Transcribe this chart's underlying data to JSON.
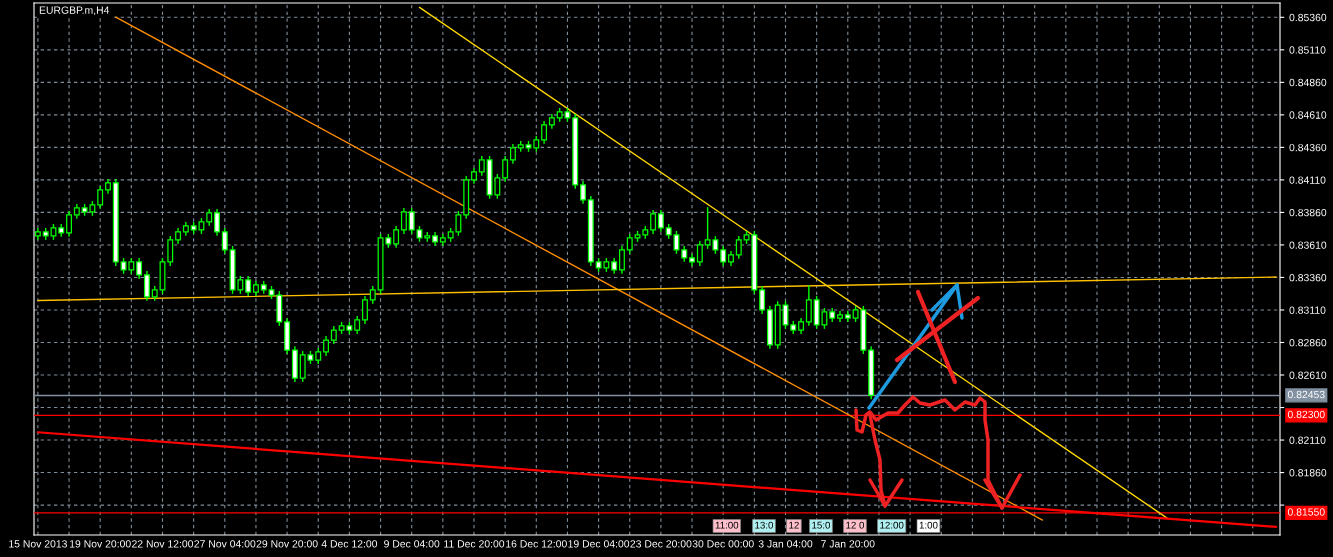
{
  "chart_data": {
    "type": "candlestick",
    "title": "EURGBP.m,H4",
    "ylim": [
      0.8138,
      0.8547
    ],
    "categories": [
      "15 Nov 2013",
      null,
      null,
      null,
      null,
      null,
      null,
      null,
      "19 Nov 20:00",
      null,
      null,
      null,
      null,
      null,
      null,
      null,
      "22 Nov 12:00",
      null,
      null,
      null,
      null,
      null,
      null,
      null,
      "27 Nov 04:00",
      null,
      null,
      null,
      null,
      null,
      null,
      null,
      "29 Nov 20:00",
      null,
      null,
      null,
      null,
      null,
      null,
      null,
      "4 Dec 12:00",
      null,
      null,
      null,
      null,
      null,
      null,
      null,
      "9 Dec 04:00",
      null,
      null,
      null,
      null,
      null,
      null,
      null,
      "11 Dec 20:00",
      null,
      null,
      null,
      null,
      null,
      null,
      null,
      "16 Dec 12:00",
      null,
      null,
      null,
      null,
      null,
      null,
      null,
      "19 Dec 04:00",
      null,
      null,
      null,
      null,
      null,
      null,
      null,
      "23 Dec 20:00",
      null,
      null,
      null,
      null,
      null,
      null,
      null,
      "30 Dec 00:00",
      null,
      null,
      null,
      null,
      null,
      null,
      null,
      "3 Jan 04:00",
      null,
      null,
      null,
      null,
      null,
      null,
      null,
      "7 Jan 20:00",
      null,
      null,
      null,
      null,
      null,
      null,
      null,
      null,
      null,
      null,
      null,
      null,
      null,
      null,
      null,
      null,
      null,
      null,
      null,
      null,
      null,
      null,
      null,
      null,
      null,
      null,
      null,
      null,
      null,
      null,
      null,
      null,
      null,
      null,
      null,
      null,
      null,
      null,
      null,
      null,
      null,
      null,
      null,
      null,
      null,
      null,
      null,
      null,
      null,
      null,
      null,
      null,
      null,
      null,
      null
    ],
    "yticks": [
      {
        "value": 0.8536,
        "label": "0.85360"
      },
      {
        "value": 0.8511,
        "label": "0.85110"
      },
      {
        "value": 0.8486,
        "label": "0.84860"
      },
      {
        "value": 0.8461,
        "label": "0.84610"
      },
      {
        "value": 0.8436,
        "label": "0.84360"
      },
      {
        "value": 0.8411,
        "label": "0.84110"
      },
      {
        "value": 0.8386,
        "label": "0.83860"
      },
      {
        "value": 0.8361,
        "label": "0.83610"
      },
      {
        "value": 0.8336,
        "label": "0.83360"
      },
      {
        "value": 0.8311,
        "label": "0.83110"
      },
      {
        "value": 0.8286,
        "label": "0.82860"
      },
      {
        "value": 0.8261,
        "label": "0.82610"
      },
      {
        "value": 0.8236,
        "label": null
      },
      {
        "value": 0.8211,
        "label": "0.82110"
      },
      {
        "value": 0.8186,
        "label": "0.81860"
      },
      {
        "value": 0.8161,
        "label": null
      }
    ],
    "grid": true,
    "legend": false,
    "ref_lines": [
      {
        "axis": "y",
        "value": 0.82453,
        "label": "0.82453",
        "color": "#8090a0"
      },
      {
        "axis": "y",
        "value": 0.823,
        "label": "0.82300",
        "color": "#ff0000"
      },
      {
        "axis": "y",
        "value": 0.8155,
        "label": "0.81550",
        "color": "#ff0000"
      }
    ],
    "annotations": [
      "11:00",
      "13:0",
      "12",
      "15:0",
      "12 0",
      "12:00",
      "1:00"
    ],
    "series": [
      {
        "type": "line",
        "color": "#ff8c00",
        "values": [
          null,
          null,
          null,
          null,
          null,
          null,
          null,
          null,
          null,
          null,
          0.85362,
          null,
          null,
          null,
          null,
          null,
          null,
          null,
          null,
          null,
          null,
          null,
          null,
          null,
          null,
          null,
          null,
          null,
          null,
          null,
          null,
          null,
          null,
          null,
          null,
          null,
          null,
          null,
          null,
          null,
          null,
          null,
          null,
          null,
          null,
          null,
          null,
          null,
          null,
          null,
          null,
          null,
          null,
          null,
          null,
          null,
          null,
          null,
          null,
          null,
          null,
          null,
          null,
          null,
          null,
          null,
          null,
          null,
          null,
          null,
          null,
          null,
          null,
          null,
          null,
          null,
          null,
          null,
          null,
          null,
          null,
          null,
          null,
          null,
          null,
          null,
          null,
          null,
          null,
          null,
          null,
          null,
          null,
          null,
          null,
          null,
          null,
          null,
          null,
          null,
          null,
          null,
          null,
          null,
          null,
          null,
          null,
          null,
          null,
          null,
          null,
          null,
          null,
          null,
          null,
          null,
          null,
          null,
          null,
          null,
          null,
          null,
          null,
          null,
          null,
          null,
          null,
          null,
          null,
          0.81495,
          null,
          null,
          null,
          null,
          null,
          null,
          null,
          null,
          null,
          null,
          null,
          null,
          null,
          null,
          null,
          null,
          null,
          null,
          null,
          null,
          null,
          null,
          null,
          null,
          null,
          null,
          null,
          null,
          null,
          null
        ]
      },
      {
        "type": "line",
        "color": "#ffd700",
        "values": [
          null,
          null,
          null,
          null,
          null,
          null,
          null,
          null,
          null,
          null,
          null,
          null,
          null,
          null,
          null,
          null,
          null,
          null,
          null,
          null,
          null,
          null,
          null,
          null,
          null,
          null,
          null,
          null,
          null,
          null,
          null,
          null,
          null,
          null,
          null,
          null,
          null,
          null,
          null,
          null,
          null,
          null,
          null,
          null,
          null,
          null,
          null,
          null,
          null,
          0.85436,
          null,
          null,
          null,
          null,
          null,
          null,
          null,
          null,
          null,
          null,
          null,
          null,
          null,
          null,
          null,
          null,
          null,
          null,
          null,
          null,
          null,
          null,
          null,
          null,
          null,
          null,
          null,
          null,
          null,
          null,
          null,
          null,
          null,
          null,
          null,
          null,
          null,
          null,
          null,
          null,
          null,
          null,
          null,
          null,
          null,
          null,
          null,
          null,
          null,
          null,
          null,
          null,
          null,
          null,
          null,
          null,
          null,
          null,
          null,
          null,
          null,
          null,
          null,
          null,
          null,
          null,
          null,
          null,
          null,
          null,
          null,
          null,
          null,
          null,
          null,
          null,
          null,
          null,
          null,
          null,
          null,
          null,
          null,
          null,
          null,
          null,
          null,
          null,
          null,
          null,
          null,
          null,
          null,
          null,
          null,
          0.8151,
          null,
          null,
          null,
          null,
          null,
          null,
          null,
          null,
          null,
          null,
          null,
          null,
          null,
          null
        ]
      },
      {
        "type": "line",
        "color": "#ffc000",
        "values": [
          0.83183,
          null,
          null,
          null,
          null,
          null,
          null,
          null,
          null,
          null,
          null,
          null,
          null,
          null,
          null,
          null,
          null,
          null,
          null,
          null,
          null,
          null,
          null,
          null,
          null,
          null,
          null,
          null,
          null,
          null,
          null,
          null,
          null,
          null,
          null,
          null,
          null,
          null,
          null,
          null,
          null,
          null,
          null,
          null,
          null,
          null,
          null,
          null,
          null,
          null,
          null,
          null,
          null,
          null,
          null,
          null,
          null,
          null,
          null,
          null,
          null,
          null,
          null,
          null,
          null,
          null,
          null,
          null,
          null,
          null,
          null,
          null,
          null,
          null,
          null,
          null,
          null,
          null,
          null,
          null,
          null,
          null,
          null,
          null,
          null,
          null,
          null,
          null,
          null,
          null,
          null,
          null,
          null,
          null,
          null,
          null,
          null,
          null,
          null,
          null,
          null,
          null,
          null,
          null,
          null,
          null,
          null,
          null,
          null,
          null,
          null,
          null,
          null,
          null,
          null,
          null,
          null,
          null,
          null,
          null,
          null,
          null,
          null,
          null,
          null,
          null,
          null,
          null,
          null,
          null,
          null,
          null,
          null,
          null,
          null,
          null,
          null,
          null,
          null,
          null,
          null,
          null,
          null,
          null,
          null,
          null,
          null,
          null,
          null,
          null,
          null,
          null,
          null,
          null,
          null,
          null,
          null,
          null,
          null,
          0.83363
        ]
      },
      {
        "type": "line",
        "color": "#ff0000",
        "values": [
          0.8217,
          null,
          null,
          null,
          null,
          null,
          null,
          null,
          null,
          null,
          null,
          null,
          null,
          null,
          null,
          null,
          null,
          null,
          null,
          null,
          null,
          null,
          null,
          null,
          null,
          null,
          null,
          null,
          null,
          null,
          null,
          null,
          null,
          null,
          null,
          null,
          null,
          null,
          null,
          null,
          null,
          null,
          null,
          null,
          null,
          null,
          null,
          null,
          null,
          null,
          null,
          null,
          null,
          null,
          null,
          null,
          null,
          null,
          null,
          null,
          null,
          null,
          null,
          null,
          null,
          null,
          null,
          null,
          null,
          null,
          null,
          null,
          null,
          null,
          null,
          null,
          null,
          null,
          null,
          null,
          null,
          null,
          null,
          null,
          null,
          null,
          null,
          null,
          null,
          null,
          null,
          null,
          null,
          null,
          null,
          null,
          null,
          null,
          null,
          null,
          null,
          null,
          null,
          null,
          null,
          null,
          null,
          null,
          null,
          null,
          null,
          null,
          null,
          null,
          null,
          null,
          null,
          null,
          null,
          null,
          null,
          null,
          null,
          null,
          null,
          null,
          null,
          null,
          null,
          null,
          null,
          null,
          null,
          null,
          null,
          null,
          null,
          null,
          null,
          null,
          null,
          null,
          null,
          null,
          null,
          null,
          null,
          null,
          null,
          null,
          null,
          null,
          null,
          null,
          null,
          null,
          null,
          null,
          null,
          0.81442
        ]
      }
    ],
    "color": "#00ff00",
    "ohlc": [
      [
        0.8368,
        0.8374,
        0.8365,
        0.8371
      ],
      [
        0.8371,
        0.8374,
        0.83649,
        0.83679
      ],
      [
        0.83679,
        0.83771,
        0.83649,
        0.83741
      ],
      [
        0.83741,
        0.83771,
        0.83672,
        0.83702
      ],
      [
        0.83702,
        0.83871,
        0.83672,
        0.83841
      ],
      [
        0.83841,
        0.83925,
        0.83811,
        0.83895
      ],
      [
        0.83895,
        0.83925,
        0.83834,
        0.83864
      ],
      [
        0.83864,
        0.83948,
        0.83834,
        0.83918
      ],
      [
        0.83918,
        0.84063,
        0.83888,
        0.84033
      ],
      [
        0.84033,
        0.84117,
        0.84003,
        0.84087
      ],
      [
        0.84087,
        0.84117,
        0.83449,
        0.83479
      ],
      [
        0.83479,
        0.83509,
        0.83388,
        0.83418
      ],
      [
        0.83418,
        0.83509,
        0.83388,
        0.83479
      ],
      [
        0.83479,
        0.83509,
        0.83349,
        0.83379
      ],
      [
        0.83379,
        0.83409,
        0.8318,
        0.8321
      ],
      [
        0.8321,
        0.83294,
        0.8318,
        0.83264
      ],
      [
        0.83264,
        0.83509,
        0.83234,
        0.83479
      ],
      [
        0.83479,
        0.83678,
        0.83449,
        0.83648
      ],
      [
        0.83648,
        0.8374,
        0.83618,
        0.8371
      ],
      [
        0.8371,
        0.83786,
        0.8368,
        0.83756
      ],
      [
        0.83756,
        0.83786,
        0.83695,
        0.83725
      ],
      [
        0.83725,
        0.83817,
        0.83695,
        0.83787
      ],
      [
        0.83787,
        0.83886,
        0.83757,
        0.83856
      ],
      [
        0.83856,
        0.83886,
        0.8368,
        0.8371
      ],
      [
        0.8371,
        0.8374,
        0.83542,
        0.83572
      ],
      [
        0.83572,
        0.83602,
        0.83234,
        0.83264
      ],
      [
        0.83264,
        0.83371,
        0.83234,
        0.83341
      ],
      [
        0.83341,
        0.83371,
        0.83218,
        0.83248
      ],
      [
        0.83248,
        0.83332,
        0.83218,
        0.83302
      ],
      [
        0.83302,
        0.83332,
        0.83234,
        0.83264
      ],
      [
        0.83264,
        0.83294,
        0.83195,
        0.83225
      ],
      [
        0.83225,
        0.83255,
        0.82988,
        0.83018
      ],
      [
        0.83018,
        0.83048,
        0.82772,
        0.82802
      ],
      [
        0.82802,
        0.82832,
        0.82557,
        0.82587
      ],
      [
        0.82587,
        0.82794,
        0.82557,
        0.82764
      ],
      [
        0.82764,
        0.82794,
        0.82695,
        0.82725
      ],
      [
        0.82725,
        0.82817,
        0.82695,
        0.82787
      ],
      [
        0.82787,
        0.82909,
        0.82757,
        0.82879
      ],
      [
        0.82879,
        0.82986,
        0.82849,
        0.82956
      ],
      [
        0.82956,
        0.83017,
        0.82926,
        0.82987
      ],
      [
        0.82987,
        0.83017,
        0.82926,
        0.82956
      ],
      [
        0.82956,
        0.83063,
        0.82926,
        0.83033
      ],
      [
        0.83033,
        0.83217,
        0.83003,
        0.83187
      ],
      [
        0.83187,
        0.83294,
        0.83157,
        0.83264
      ],
      [
        0.83264,
        0.83694,
        0.83234,
        0.83664
      ],
      [
        0.83664,
        0.83694,
        0.83588,
        0.83618
      ],
      [
        0.83618,
        0.83755,
        0.83588,
        0.83725
      ],
      [
        0.83725,
        0.83894,
        0.83695,
        0.83864
      ],
      [
        0.83864,
        0.83894,
        0.83695,
        0.83725
      ],
      [
        0.83725,
        0.83755,
        0.83634,
        0.83664
      ],
      [
        0.83664,
        0.83709,
        0.83634,
        0.83679
      ],
      [
        0.83679,
        0.83709,
        0.83603,
        0.83633
      ],
      [
        0.83633,
        0.83694,
        0.83603,
        0.83664
      ],
      [
        0.83664,
        0.8374,
        0.83634,
        0.8371
      ],
      [
        0.8371,
        0.83871,
        0.8368,
        0.83841
      ],
      [
        0.83841,
        0.8414,
        0.83811,
        0.8411
      ],
      [
        0.8411,
        0.84201,
        0.8408,
        0.84171
      ],
      [
        0.84171,
        0.84294,
        0.84141,
        0.84264
      ],
      [
        0.84264,
        0.84294,
        0.83965,
        0.83995
      ],
      [
        0.83995,
        0.84155,
        0.83965,
        0.84125
      ],
      [
        0.84125,
        0.84294,
        0.84095,
        0.84264
      ],
      [
        0.84264,
        0.84386,
        0.84234,
        0.84356
      ],
      [
        0.84356,
        0.84409,
        0.84326,
        0.84379
      ],
      [
        0.84379,
        0.84409,
        0.84326,
        0.84356
      ],
      [
        0.84356,
        0.84448,
        0.84326,
        0.84418
      ],
      [
        0.84418,
        0.84563,
        0.84388,
        0.84533
      ],
      [
        0.84533,
        0.84617,
        0.84503,
        0.84587
      ],
      [
        0.84587,
        0.84663,
        0.84557,
        0.84633
      ],
      [
        0.84633,
        0.84663,
        0.84557,
        0.84587
      ],
      [
        0.84587,
        0.84617,
        0.84041,
        0.84071
      ],
      [
        0.84071,
        0.84101,
        0.83926,
        0.83956
      ],
      [
        0.83956,
        0.83986,
        0.83449,
        0.83479
      ],
      [
        0.83479,
        0.83509,
        0.83403,
        0.83433
      ],
      [
        0.83433,
        0.83509,
        0.83403,
        0.83479
      ],
      [
        0.83479,
        0.83509,
        0.83388,
        0.83418
      ],
      [
        0.83418,
        0.83602,
        0.83388,
        0.83572
      ],
      [
        0.83572,
        0.83694,
        0.83542,
        0.83664
      ],
      [
        0.83664,
        0.83717,
        0.83634,
        0.83687
      ],
      [
        0.83687,
        0.83755,
        0.83657,
        0.83725
      ],
      [
        0.83725,
        0.83878,
        0.83695,
        0.83848
      ],
      [
        0.83848,
        0.83878,
        0.83711,
        0.83741
      ],
      [
        0.83741,
        0.83771,
        0.83657,
        0.83687
      ],
      [
        0.83687,
        0.83717,
        0.83542,
        0.83572
      ],
      [
        0.83572,
        0.83602,
        0.8348,
        0.8351
      ],
      [
        0.8351,
        0.8354,
        0.83449,
        0.83479
      ],
      [
        0.83479,
        0.8364,
        0.83449,
        0.8361
      ],
      [
        0.8361,
        0.839,
        0.8358,
        0.83648
      ],
      [
        0.83648,
        0.83678,
        0.83542,
        0.83572
      ],
      [
        0.83572,
        0.83602,
        0.83449,
        0.83479
      ],
      [
        0.83479,
        0.83563,
        0.83449,
        0.83533
      ],
      [
        0.83533,
        0.83678,
        0.83503,
        0.83648
      ],
      [
        0.83648,
        0.83717,
        0.83618,
        0.83687
      ],
      [
        0.83687,
        0.83717,
        0.83234,
        0.83264
      ],
      [
        0.83264,
        0.83294,
        0.8308,
        0.8311
      ],
      [
        0.8311,
        0.8314,
        0.82811,
        0.82841
      ],
      [
        0.82841,
        0.83178,
        0.82811,
        0.83148
      ],
      [
        0.83148,
        0.83178,
        0.82965,
        0.82995
      ],
      [
        0.82995,
        0.83025,
        0.82926,
        0.82956
      ],
      [
        0.82956,
        0.83048,
        0.82926,
        0.83018
      ],
      [
        0.83018,
        0.833,
        0.82988,
        0.83187
      ],
      [
        0.83187,
        0.83217,
        0.82965,
        0.82995
      ],
      [
        0.82995,
        0.83125,
        0.82965,
        0.83095
      ],
      [
        0.83095,
        0.83125,
        0.83018,
        0.83048
      ],
      [
        0.83048,
        0.83102,
        0.83018,
        0.83072
      ],
      [
        0.83072,
        0.83102,
        0.83018,
        0.83048
      ],
      [
        0.83048,
        0.8314,
        0.83018,
        0.8311
      ],
      [
        0.8311,
        0.8314,
        0.82772,
        0.82802
      ],
      [
        0.82802,
        0.82832,
        0.82423,
        0.82453
      ],
      null,
      null,
      null,
      null,
      null,
      null,
      null,
      null,
      null,
      null,
      null,
      null,
      null,
      null,
      null,
      null,
      null,
      null,
      null,
      null,
      null,
      null,
      null,
      null,
      null,
      null,
      null,
      null,
      null,
      null,
      null,
      null,
      null,
      null,
      null,
      null,
      null,
      null,
      null,
      null,
      null,
      null,
      null,
      null,
      null,
      null,
      null,
      null,
      null,
      null,
      null,
      null
    ]
  }
}
